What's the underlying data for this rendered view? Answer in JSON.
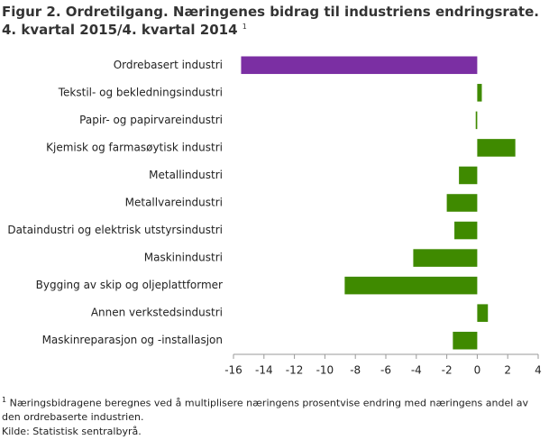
{
  "chart_data": {
    "type": "barh",
    "title": "Figur 2. Ordretilgang. Næringenes bidrag til industriens endringsrate.",
    "subtitle": "4. kvartal 2015/4. kvartal 2014",
    "title_note_marker": "1",
    "categories": [
      "Ordrebasert industri",
      "Tekstil- og bekledningsindustri",
      "Papir- og papirvareindustri",
      "Kjemisk og farmasøytisk industri",
      "Metallindustri",
      "Metallvareindustri",
      "Dataindustri og elektrisk utstyrsindustri",
      "Maskinindustri",
      "Bygging av skip og oljeplattformer",
      "Annen verkstedsindustri",
      "Maskinreparasjon og -installasjon"
    ],
    "values": [
      -15.5,
      0.3,
      -0.1,
      2.5,
      -1.2,
      -2.0,
      -1.5,
      -4.2,
      -8.7,
      0.7,
      -1.6
    ],
    "colors": [
      "#7b2fa3",
      "#3f8a00",
      "#3f8a00",
      "#3f8a00",
      "#3f8a00",
      "#3f8a00",
      "#3f8a00",
      "#3f8a00",
      "#3f8a00",
      "#3f8a00",
      "#3f8a00"
    ],
    "xlim": [
      -16,
      4
    ],
    "xticks": [
      -16,
      -14,
      -12,
      -10,
      -8,
      -6,
      -4,
      -2,
      0,
      2,
      4
    ],
    "footnote_marker": "1",
    "footnote": "Næringsbidragene beregnes ved å multiplisere næringens prosentvise endring med næringens andel av den ordrebaserte industrien.",
    "source": "Kilde: Statistisk sentralbyrå."
  }
}
